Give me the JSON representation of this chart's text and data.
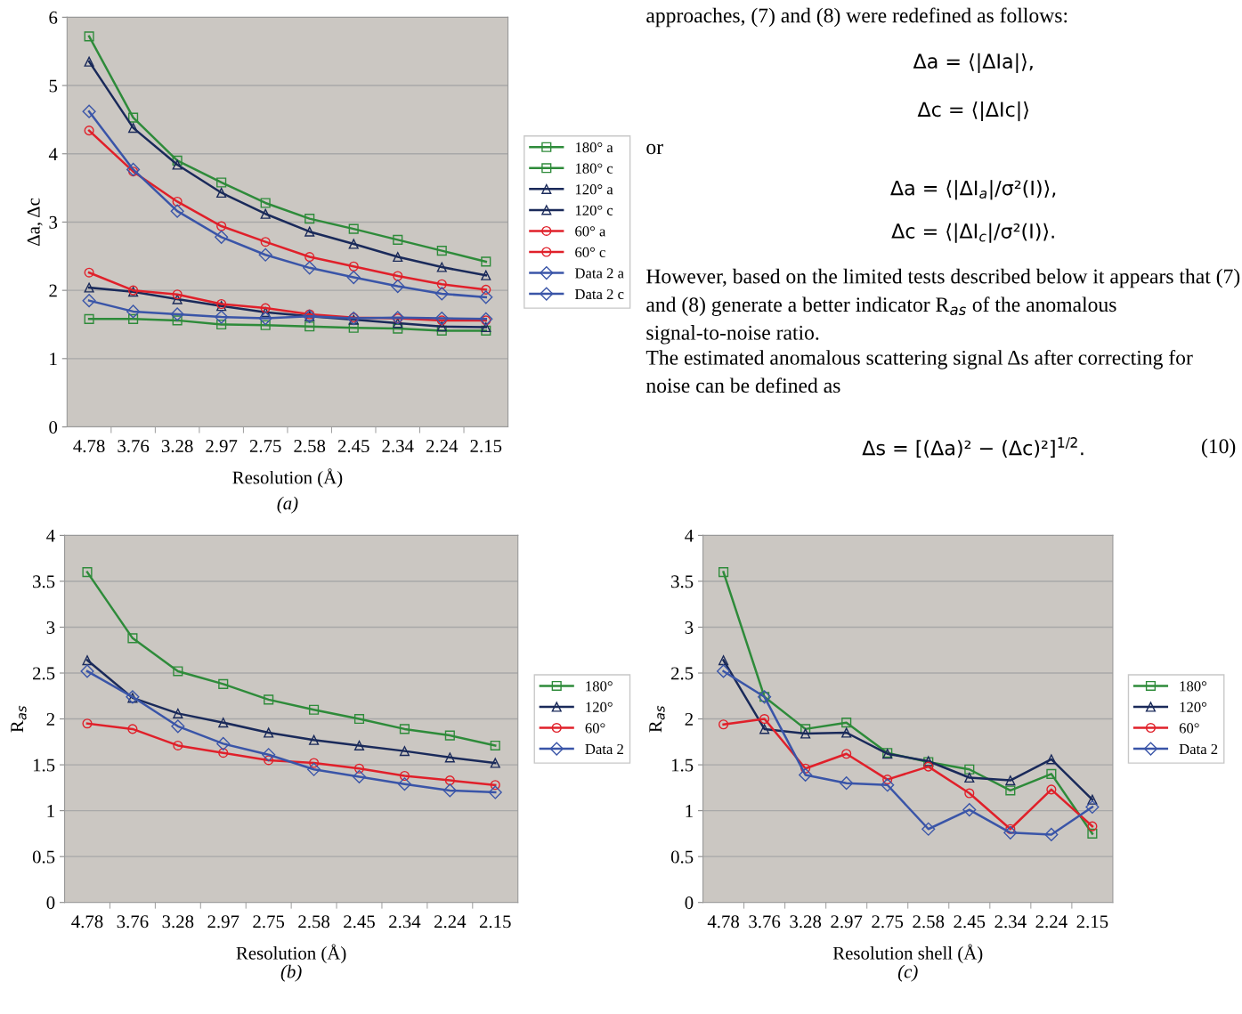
{
  "chart_data": [
    {
      "type": "line",
      "subtitle": "(a)",
      "xlabel": "Resolution (Å)",
      "ylabel": "Δa, Δc",
      "categories": [
        "4.78",
        "3.76",
        "3.28",
        "2.97",
        "2.75",
        "2.58",
        "2.45",
        "2.34",
        "2.24",
        "2.15"
      ],
      "ylim": [
        0,
        6
      ],
      "yticks": [
        0,
        1,
        2,
        3,
        4,
        5,
        6
      ],
      "grid": "y",
      "legend": "right",
      "series": [
        {
          "name": "180° a",
          "color": "#2e8b3a",
          "marker": "square",
          "values": [
            5.72,
            4.53,
            3.9,
            3.58,
            3.28,
            3.05,
            2.9,
            2.74,
            2.58,
            2.42
          ]
        },
        {
          "name": "180° c",
          "color": "#2e8b3a",
          "marker": "square",
          "values": [
            1.58,
            1.58,
            1.56,
            1.5,
            1.49,
            1.47,
            1.45,
            1.44,
            1.41,
            1.41
          ]
        },
        {
          "name": "120° a",
          "color": "#1a2a5a",
          "marker": "triangle",
          "values": [
            5.35,
            4.38,
            3.84,
            3.43,
            3.12,
            2.86,
            2.68,
            2.49,
            2.34,
            2.22
          ]
        },
        {
          "name": "120° c",
          "color": "#1a2a5a",
          "marker": "triangle",
          "values": [
            2.04,
            1.98,
            1.87,
            1.77,
            1.68,
            1.62,
            1.57,
            1.52,
            1.47,
            1.46
          ]
        },
        {
          "name": "60° a",
          "color": "#e0202a",
          "marker": "circle",
          "values": [
            4.34,
            3.74,
            3.3,
            2.94,
            2.71,
            2.49,
            2.35,
            2.21,
            2.09,
            2.01
          ]
        },
        {
          "name": "60° c",
          "color": "#e0202a",
          "marker": "circle",
          "values": [
            2.26,
            2.0,
            1.94,
            1.8,
            1.74,
            1.65,
            1.6,
            1.59,
            1.56,
            1.56
          ]
        },
        {
          "name": "Data 2 a",
          "color": "#3a55a8",
          "marker": "diamond",
          "values": [
            4.62,
            3.77,
            3.16,
            2.78,
            2.52,
            2.33,
            2.19,
            2.06,
            1.95,
            1.9
          ]
        },
        {
          "name": "Data 2 c",
          "color": "#3a55a8",
          "marker": "diamond",
          "values": [
            1.85,
            1.69,
            1.65,
            1.61,
            1.59,
            1.62,
            1.59,
            1.6,
            1.59,
            1.58
          ]
        }
      ]
    },
    {
      "type": "other",
      "annotations": [
        "approaches, (7) and (8) were redefined as follows:",
        "Δa = ⟨|ΔIa|⟩,",
        "Δc = ⟨|ΔIc|⟩",
        "or",
        "Δa = ⟨|ΔI$_{a}$|/σ²(I)⟩,",
        "Δc = ⟨|ΔI$_{c}$|/σ²(I)⟩.",
        "However, based on the limited tests described below it appears that (7) and (8) generate a better indicator R$_{as}$ of the anomalous signal-to-noise ratio.",
        "The estimated anomalous scattering signal Δs after correcting for noise can be defined as",
        "Δs = [(Δa)² − (Δc)²]$^{1/2}$.",
        "(10)"
      ]
    },
    {
      "type": "line",
      "subtitle": "(b)",
      "xlabel": "Resolution (Å)",
      "ylabel": "R$_{as}$",
      "categories": [
        "4.78",
        "3.76",
        "3.28",
        "2.97",
        "2.75",
        "2.58",
        "2.45",
        "2.34",
        "2.24",
        "2.15"
      ],
      "ylim": [
        0,
        4
      ],
      "yticks": [
        0,
        0.5,
        1,
        1.5,
        2,
        2.5,
        3,
        3.5,
        4
      ],
      "grid": "y",
      "legend": "right",
      "series": [
        {
          "name": "180°",
          "color": "#2e8b3a",
          "marker": "square",
          "values": [
            3.6,
            2.88,
            2.52,
            2.38,
            2.21,
            2.1,
            2.0,
            1.89,
            1.82,
            1.71
          ]
        },
        {
          "name": "120°",
          "color": "#1a2a5a",
          "marker": "triangle",
          "values": [
            2.64,
            2.23,
            2.06,
            1.96,
            1.85,
            1.77,
            1.71,
            1.65,
            1.58,
            1.52
          ]
        },
        {
          "name": "60°",
          "color": "#e0202a",
          "marker": "circle",
          "values": [
            1.95,
            1.89,
            1.71,
            1.63,
            1.55,
            1.52,
            1.46,
            1.38,
            1.33,
            1.28
          ]
        },
        {
          "name": "Data 2",
          "color": "#3a55a8",
          "marker": "diamond",
          "values": [
            2.52,
            2.24,
            1.92,
            1.73,
            1.61,
            1.45,
            1.37,
            1.29,
            1.22,
            1.2
          ]
        }
      ]
    },
    {
      "type": "line",
      "subtitle": "(c)",
      "xlabel": "Resolution shell (Å)",
      "ylabel": "R$_{as}$",
      "categories": [
        "4.78",
        "3.76",
        "3.28",
        "2.97",
        "2.75",
        "2.58",
        "2.45",
        "2.34",
        "2.24",
        "2.15"
      ],
      "ylim": [
        0,
        4
      ],
      "yticks": [
        0,
        0.5,
        1,
        1.5,
        2,
        2.5,
        3,
        3.5,
        4
      ],
      "grid": "y",
      "legend": "right",
      "series": [
        {
          "name": "180°",
          "color": "#2e8b3a",
          "marker": "square",
          "values": [
            3.6,
            2.24,
            1.89,
            1.96,
            1.63,
            1.53,
            1.45,
            1.22,
            1.4,
            0.75
          ]
        },
        {
          "name": "120°",
          "color": "#1a2a5a",
          "marker": "triangle",
          "values": [
            2.64,
            1.89,
            1.84,
            1.85,
            1.62,
            1.54,
            1.36,
            1.33,
            1.56,
            1.12
          ]
        },
        {
          "name": "60°",
          "color": "#e0202a",
          "marker": "circle",
          "values": [
            1.94,
            2.0,
            1.46,
            1.62,
            1.34,
            1.48,
            1.19,
            0.8,
            1.23,
            0.83
          ]
        },
        {
          "name": "Data 2",
          "color": "#3a55a8",
          "marker": "diamond",
          "values": [
            2.52,
            2.24,
            1.39,
            1.3,
            1.28,
            0.8,
            1.01,
            0.76,
            0.74,
            1.04
          ]
        }
      ]
    }
  ]
}
